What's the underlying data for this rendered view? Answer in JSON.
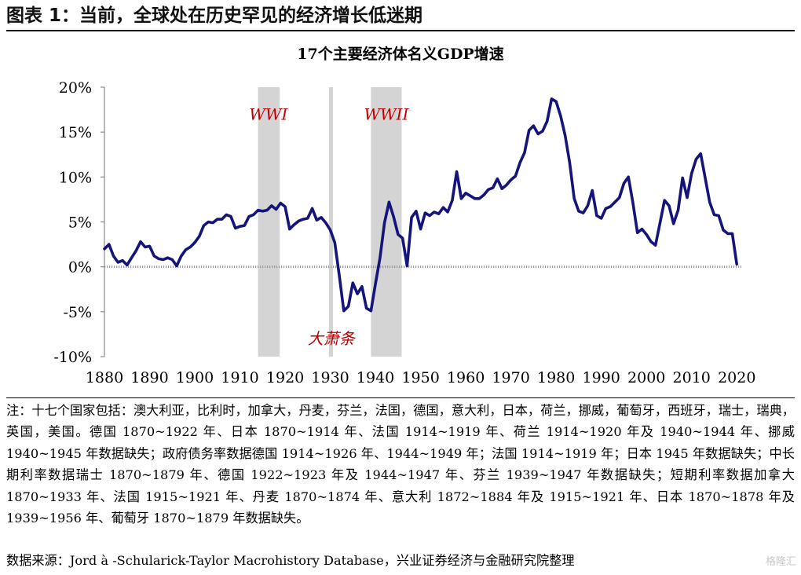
{
  "figure": {
    "header": "图表 1：当前，全球处在历史罕见的经济增长低迷期",
    "note": "注：十七个国家包括：澳大利亚，比利时，加拿大，丹麦，芬兰，法国，德国，意大利，日本，荷兰，挪威，葡萄牙，西班牙，瑞士，瑞典，英国，美国。德国 1870~1922 年、日本 1870~1914 年、法国 1914~1919 年、荷兰 1914~1920 年及 1940~1944 年、挪威 1940~1945 年数据缺失；政府债务率数据德国 1914~1926 年、1944~1949 年；法国 1914~1919 年；日本 1945 年数据缺失；中长期利率数据瑞士 1870~1879 年、德国 1922~1923 年及 1944~1947 年、芬兰 1939~1947 年数据缺失；短期利率数据加拿大 1870~1933 年、法国 1915~1921 年、丹麦 1870~1874 年、意大利 1872~1884 年及 1915~1921 年、日本 1870~1878 年及 1939~1956 年、葡萄牙 1870~1879 年数据缺失。",
    "source": "数据来源：Jord à -Schularick-Taylor Macrohistory Database，兴业证券经济与金融研究院整理",
    "watermark": "格隆汇"
  },
  "chart_data": {
    "type": "line",
    "title": "17个主要经济体名义GDP增速",
    "xlabel": "",
    "ylabel": "",
    "xlim": [
      1880,
      2021
    ],
    "ylim": [
      -10,
      20
    ],
    "x_ticks": [
      "1880",
      "1890",
      "1900",
      "1910",
      "1920",
      "1930",
      "1940",
      "1950",
      "1960",
      "1970",
      "1980",
      "1990",
      "2000",
      "2010",
      "2020"
    ],
    "y_ticks": [
      {
        "value": 20,
        "label": "20%"
      },
      {
        "value": 15,
        "label": "15%"
      },
      {
        "value": 10,
        "label": "10%"
      },
      {
        "value": 5,
        "label": "5%"
      },
      {
        "value": 0,
        "label": "0%"
      },
      {
        "value": -5,
        "label": "-5%"
      },
      {
        "value": -10,
        "label": "-10%"
      }
    ],
    "shaded_periods": [
      {
        "label": "WWI",
        "start": 1914,
        "end": 1918.8
      },
      {
        "label": "",
        "start": 1929.7,
        "end": 1930.6
      },
      {
        "label": "WWII",
        "start": 1939,
        "end": 1945.8
      }
    ],
    "annotations": [
      {
        "text": "WWI",
        "x": 1916.3,
        "y": 17,
        "color": "#c00000"
      },
      {
        "text": "WWII",
        "x": 1942.4,
        "y": 17,
        "color": "#c00000"
      },
      {
        "text": "大萧条",
        "x": 1930.2,
        "y": -8,
        "color": "#c00000"
      }
    ],
    "series": [
      {
        "name": "",
        "color": "#14147a",
        "x": [
          1880,
          1881,
          1882,
          1883,
          1884,
          1885,
          1886,
          1887,
          1888,
          1889,
          1890,
          1891,
          1892,
          1893,
          1894,
          1895,
          1896,
          1897,
          1898,
          1899,
          1900,
          1901,
          1902,
          1903,
          1904,
          1905,
          1906,
          1907,
          1908,
          1909,
          1910,
          1911,
          1912,
          1913,
          1914,
          1915,
          1916,
          1917,
          1918,
          1919,
          1920,
          1921,
          1922,
          1923,
          1924,
          1925,
          1926,
          1927,
          1928,
          1929,
          1930,
          1931,
          1932,
          1933,
          1934,
          1935,
          1936,
          1937,
          1938,
          1939,
          1940,
          1941,
          1942,
          1943,
          1944,
          1945,
          1946,
          1947,
          1948,
          1949,
          1950,
          1951,
          1952,
          1953,
          1954,
          1955,
          1956,
          1957,
          1958,
          1959,
          1960,
          1961,
          1962,
          1963,
          1964,
          1965,
          1966,
          1967,
          1968,
          1969,
          1970,
          1971,
          1972,
          1973,
          1974,
          1975,
          1976,
          1977,
          1978,
          1979,
          1980,
          1981,
          1982,
          1983,
          1984,
          1985,
          1986,
          1987,
          1988,
          1989,
          1990,
          1991,
          1992,
          1993,
          1994,
          1995,
          1996,
          1997,
          1998,
          1999,
          2000,
          2001,
          2002,
          2003,
          2004,
          2005,
          2006,
          2007,
          2008,
          2009,
          2010,
          2011,
          2012,
          2013,
          2014,
          2015,
          2016,
          2017,
          2018,
          2019,
          2020
        ],
        "values": [
          2.0,
          2.5,
          1.2,
          0.5,
          0.7,
          0.2,
          1.0,
          1.8,
          2.8,
          2.2,
          2.3,
          1.2,
          0.9,
          0.8,
          1.0,
          0.8,
          0.1,
          1.2,
          1.9,
          2.2,
          2.7,
          3.4,
          4.6,
          5.0,
          4.9,
          5.3,
          5.3,
          5.8,
          5.6,
          4.3,
          4.5,
          4.6,
          5.6,
          5.8,
          6.3,
          6.2,
          6.3,
          6.8,
          6.4,
          7.1,
          6.7,
          4.2,
          4.7,
          5.1,
          5.3,
          5.4,
          6.5,
          5.2,
          5.5,
          4.9,
          4.1,
          2.7,
          -1.0,
          -4.9,
          -4.4,
          -1.8,
          -3.0,
          -2.2,
          -4.6,
          -4.9,
          -1.9,
          1.0,
          4.9,
          7.2,
          5.6,
          3.6,
          3.2,
          0.1,
          5.5,
          6.2,
          4.2,
          6.0,
          5.7,
          6.1,
          5.9,
          6.6,
          6.1,
          7.4,
          10.6,
          7.6,
          8.2,
          7.9,
          7.6,
          7.6,
          8.0,
          8.6,
          8.8,
          9.8,
          8.7,
          9.1,
          9.7,
          10.1,
          11.6,
          12.7,
          15.2,
          15.7,
          14.8,
          15.1,
          16.2,
          18.7,
          18.4,
          16.8,
          14.6,
          11.6,
          7.6,
          6.2,
          6.0,
          6.8,
          8.5,
          5.7,
          5.4,
          6.5,
          6.7,
          7.2,
          7.7,
          9.3,
          10.0,
          7.1,
          3.8,
          4.2,
          3.6,
          2.8,
          2.4,
          4.9,
          7.4,
          6.8,
          4.8,
          6.3,
          9.9,
          7.7,
          10.4,
          12.0,
          12.6,
          9.9,
          7.2,
          5.8,
          5.7,
          4.1,
          3.7,
          3.7,
          0.3
        ]
      }
    ]
  }
}
